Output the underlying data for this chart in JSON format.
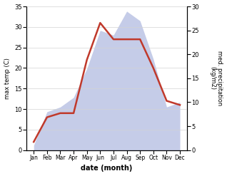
{
  "months": [
    "Jan",
    "Feb",
    "Mar",
    "Apr",
    "May",
    "Jun",
    "Jul",
    "Aug",
    "Sep",
    "Oct",
    "Nov",
    "Dec"
  ],
  "temperature": [
    2.0,
    8.0,
    9.0,
    9.0,
    22.0,
    31.0,
    27.0,
    27.0,
    27.0,
    20.0,
    12.0,
    11.0
  ],
  "precipitation": [
    1.0,
    8.0,
    9.0,
    11.0,
    17.0,
    25.0,
    24.0,
    29.0,
    27.0,
    19.0,
    9.0,
    10.0
  ],
  "temp_color": "#c0392b",
  "precip_fill_color": "#c5cce8",
  "precip_edge_color": "#aab4d8",
  "temp_ylim": [
    0,
    35
  ],
  "precip_ylim": [
    0,
    30
  ],
  "temp_yticks": [
    0,
    5,
    10,
    15,
    20,
    25,
    30,
    35
  ],
  "precip_yticks": [
    0,
    5,
    10,
    15,
    20,
    25,
    30
  ],
  "xlabel": "date (month)",
  "ylabel_left": "max temp (C)",
  "ylabel_right": "med. precipitation\n(kg/m2)"
}
